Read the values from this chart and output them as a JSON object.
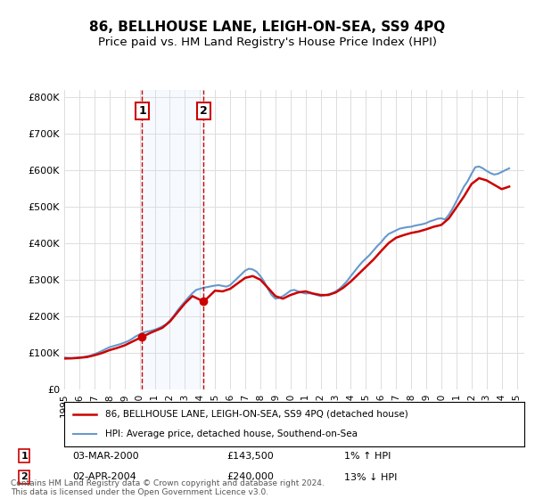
{
  "title": "86, BELLHOUSE LANE, LEIGH-ON-SEA, SS9 4PQ",
  "subtitle": "Price paid vs. HM Land Registry's House Price Index (HPI)",
  "ylabel_ticks": [
    "£0",
    "£100K",
    "£200K",
    "£300K",
    "£400K",
    "£500K",
    "£600K",
    "£700K",
    "£800K"
  ],
  "ytick_vals": [
    0,
    100000,
    200000,
    300000,
    400000,
    500000,
    600000,
    700000,
    800000
  ],
  "ylim": [
    0,
    820000
  ],
  "xlim_start": 1995.0,
  "xlim_end": 2025.5,
  "transaction1": {
    "year": 2000.17,
    "price": 143500,
    "label": "1",
    "date": "03-MAR-2000",
    "pct": "1% ↑ HPI"
  },
  "transaction2": {
    "year": 2004.25,
    "price": 240000,
    "label": "2",
    "date": "02-APR-2004",
    "pct": "13% ↓ HPI"
  },
  "legend1_label": "86, BELLHOUSE LANE, LEIGH-ON-SEA, SS9 4PQ (detached house)",
  "legend2_label": "HPI: Average price, detached house, Southend-on-Sea",
  "footnote": "Contains HM Land Registry data © Crown copyright and database right 2024.\nThis data is licensed under the Open Government Licence v3.0.",
  "line_color_red": "#cc0000",
  "line_color_blue": "#6699cc",
  "shaded_region_color": "#ddeeff",
  "marker_box_color": "#cc0000",
  "hpi_data_x": [
    1995.0,
    1995.25,
    1995.5,
    1995.75,
    1996.0,
    1996.25,
    1996.5,
    1996.75,
    1997.0,
    1997.25,
    1997.5,
    1997.75,
    1998.0,
    1998.25,
    1998.5,
    1998.75,
    1999.0,
    1999.25,
    1999.5,
    1999.75,
    2000.0,
    2000.25,
    2000.5,
    2000.75,
    2001.0,
    2001.25,
    2001.5,
    2001.75,
    2002.0,
    2002.25,
    2002.5,
    2002.75,
    2003.0,
    2003.25,
    2003.5,
    2003.75,
    2004.0,
    2004.25,
    2004.5,
    2004.75,
    2005.0,
    2005.25,
    2005.5,
    2005.75,
    2006.0,
    2006.25,
    2006.5,
    2006.75,
    2007.0,
    2007.25,
    2007.5,
    2007.75,
    2008.0,
    2008.25,
    2008.5,
    2008.75,
    2009.0,
    2009.25,
    2009.5,
    2009.75,
    2010.0,
    2010.25,
    2010.5,
    2010.75,
    2011.0,
    2011.25,
    2011.5,
    2011.75,
    2012.0,
    2012.25,
    2012.5,
    2012.75,
    2013.0,
    2013.25,
    2013.5,
    2013.75,
    2014.0,
    2014.25,
    2014.5,
    2014.75,
    2015.0,
    2015.25,
    2015.5,
    2015.75,
    2016.0,
    2016.25,
    2016.5,
    2016.75,
    2017.0,
    2017.25,
    2017.5,
    2017.75,
    2018.0,
    2018.25,
    2018.5,
    2018.75,
    2019.0,
    2019.25,
    2019.5,
    2019.75,
    2020.0,
    2020.25,
    2020.5,
    2020.75,
    2021.0,
    2021.25,
    2021.5,
    2021.75,
    2022.0,
    2022.25,
    2022.5,
    2022.75,
    2023.0,
    2023.25,
    2023.5,
    2023.75,
    2024.0,
    2024.25,
    2024.5
  ],
  "hpi_data_y": [
    87000,
    86000,
    85500,
    86000,
    87000,
    88000,
    90000,
    92000,
    96000,
    100000,
    105000,
    110000,
    115000,
    118000,
    121000,
    124000,
    128000,
    132000,
    138000,
    145000,
    150000,
    155000,
    158000,
    160000,
    163000,
    167000,
    172000,
    178000,
    188000,
    200000,
    215000,
    228000,
    240000,
    252000,
    263000,
    272000,
    275000,
    278000,
    280000,
    282000,
    284000,
    285000,
    283000,
    281000,
    285000,
    295000,
    305000,
    315000,
    325000,
    330000,
    328000,
    322000,
    310000,
    295000,
    275000,
    258000,
    248000,
    250000,
    255000,
    262000,
    270000,
    272000,
    268000,
    265000,
    262000,
    263000,
    261000,
    258000,
    255000,
    257000,
    260000,
    263000,
    268000,
    275000,
    285000,
    296000,
    310000,
    323000,
    336000,
    348000,
    358000,
    368000,
    380000,
    392000,
    402000,
    415000,
    425000,
    430000,
    435000,
    440000,
    442000,
    444000,
    445000,
    448000,
    450000,
    452000,
    455000,
    460000,
    463000,
    467000,
    468000,
    465000,
    478000,
    495000,
    515000,
    535000,
    555000,
    570000,
    590000,
    608000,
    610000,
    605000,
    598000,
    592000,
    588000,
    590000,
    595000,
    600000,
    605000
  ],
  "price_paid_x": [
    1995.0,
    1995.5,
    1996.0,
    1996.5,
    1997.0,
    1997.5,
    1998.0,
    1998.5,
    1999.0,
    1999.5,
    2000.17,
    2000.75,
    2001.5,
    2002.0,
    2002.5,
    2003.0,
    2003.5,
    2004.25,
    2005.0,
    2005.5,
    2006.0,
    2006.5,
    2007.0,
    2007.5,
    2008.0,
    2008.5,
    2009.0,
    2009.5,
    2010.0,
    2010.5,
    2011.0,
    2011.5,
    2012.0,
    2012.5,
    2013.0,
    2013.5,
    2014.0,
    2014.5,
    2015.0,
    2015.5,
    2016.0,
    2016.5,
    2017.0,
    2017.5,
    2018.0,
    2018.5,
    2019.0,
    2019.5,
    2020.0,
    2020.5,
    2021.0,
    2021.5,
    2022.0,
    2022.5,
    2023.0,
    2023.5,
    2024.0,
    2024.5
  ],
  "price_paid_y": [
    84000,
    84500,
    86000,
    88000,
    93000,
    99000,
    107000,
    113000,
    120000,
    130000,
    143500,
    155000,
    168000,
    185000,
    210000,
    235000,
    255000,
    240000,
    270000,
    268000,
    275000,
    290000,
    305000,
    310000,
    300000,
    278000,
    255000,
    248000,
    258000,
    265000,
    268000,
    262000,
    258000,
    258000,
    265000,
    278000,
    295000,
    315000,
    335000,
    355000,
    378000,
    400000,
    415000,
    422000,
    428000,
    432000,
    438000,
    445000,
    450000,
    468000,
    498000,
    528000,
    562000,
    578000,
    572000,
    560000,
    548000,
    555000
  ],
  "xtick_years": [
    1995,
    1996,
    1997,
    1998,
    1999,
    2000,
    2001,
    2002,
    2003,
    2004,
    2005,
    2006,
    2007,
    2008,
    2009,
    2010,
    2011,
    2012,
    2013,
    2014,
    2015,
    2016,
    2017,
    2018,
    2019,
    2020,
    2021,
    2022,
    2023,
    2024,
    2025
  ],
  "background_color": "#ffffff",
  "grid_color": "#dddddd"
}
